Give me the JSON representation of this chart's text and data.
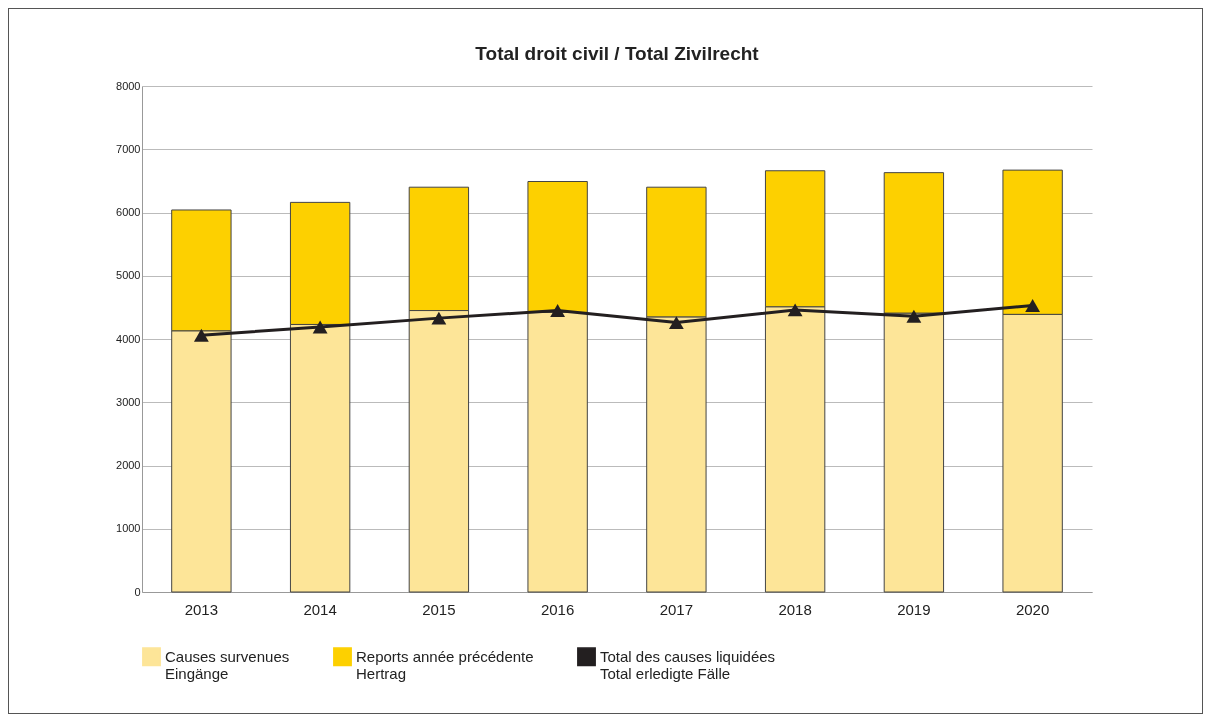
{
  "chart_data": {
    "type": "bar",
    "title": "Total droit civil / Total Zivilrecht",
    "stacked": true,
    "categories": [
      "2013",
      "2014",
      "2015",
      "2016",
      "2017",
      "2018",
      "2019",
      "2020"
    ],
    "series": [
      {
        "name": "Causes survenues\nEingänge",
        "color": "#fde598",
        "values": [
          4130,
          4230,
          4450,
          4420,
          4350,
          4510,
          4410,
          4390
        ]
      },
      {
        "name": "Reports année précédente\nHertrag",
        "color": "#fdd000",
        "values": [
          1910,
          1930,
          1950,
          2070,
          2050,
          2150,
          2220,
          2280
        ]
      },
      {
        "name": "Total des causes liquidées\nTotal erledigte Fälle",
        "type": "line",
        "color": "#231f20",
        "marker": "triangle",
        "line_style": "solid",
        "values": [
          4060,
          4190,
          4330,
          4450,
          4260,
          4460,
          4360,
          4530
        ]
      }
    ],
    "ylim": [
      0,
      8000
    ],
    "yticks": [
      0,
      1000,
      2000,
      3000,
      4000,
      5000,
      6000,
      7000,
      8000
    ],
    "grid": "y",
    "legend": "bottom"
  }
}
